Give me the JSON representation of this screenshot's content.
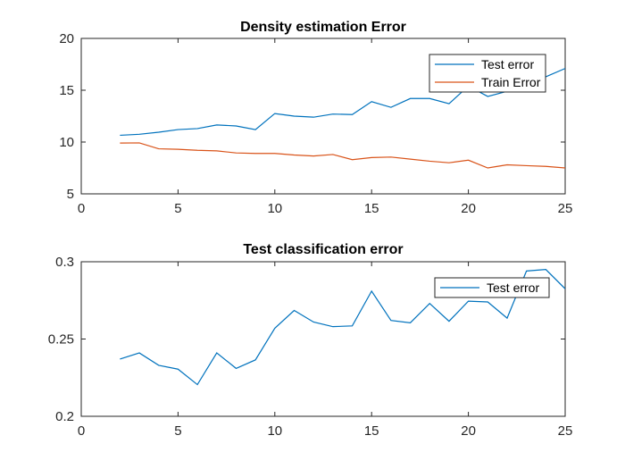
{
  "chart_data": [
    {
      "type": "line",
      "title": "Density estimation Error",
      "xlabel": "",
      "ylabel": "",
      "xlim": [
        0,
        25
      ],
      "ylim": [
        5,
        20
      ],
      "xticks": [
        "0",
        "5",
        "10",
        "15",
        "20",
        "25"
      ],
      "yticks": [
        "5",
        "10",
        "15",
        "20"
      ],
      "grid": false,
      "legend": "top-right",
      "x": [
        2,
        3,
        4,
        5,
        6,
        7,
        8,
        9,
        10,
        11,
        12,
        13,
        14,
        15,
        16,
        17,
        18,
        19,
        20,
        21,
        22,
        23,
        24,
        25
      ],
      "series": [
        {
          "name": "Test error",
          "color": "#0072BD",
          "values": [
            10.65,
            10.75,
            10.95,
            11.2,
            11.3,
            11.65,
            11.55,
            11.2,
            12.75,
            12.5,
            12.4,
            12.7,
            12.65,
            13.9,
            13.35,
            14.2,
            14.2,
            13.7,
            15.4,
            14.4,
            14.9,
            15.6,
            16.3,
            17.1
          ]
        },
        {
          "name": "Train Error",
          "color": "#D95319",
          "values": [
            9.9,
            9.92,
            9.35,
            9.3,
            9.2,
            9.15,
            8.95,
            8.9,
            8.9,
            8.75,
            8.65,
            8.8,
            8.3,
            8.5,
            8.55,
            8.35,
            8.15,
            8.0,
            8.25,
            7.5,
            7.8,
            7.72,
            7.65,
            7.5
          ]
        }
      ]
    },
    {
      "type": "line",
      "title": "Test classification error",
      "xlabel": "",
      "ylabel": "",
      "xlim": [
        0,
        25
      ],
      "ylim": [
        0.2,
        0.3
      ],
      "xticks": [
        "0",
        "5",
        "10",
        "15",
        "20",
        "25"
      ],
      "yticks": [
        "0.2",
        "0.25",
        "0.3"
      ],
      "grid": false,
      "legend": "top-right",
      "x": [
        2,
        3,
        4,
        5,
        6,
        7,
        8,
        9,
        10,
        11,
        12,
        13,
        14,
        15,
        16,
        17,
        18,
        19,
        20,
        21,
        22,
        23,
        24,
        25
      ],
      "series": [
        {
          "name": "Test error",
          "color": "#0072BD",
          "values": [
            0.237,
            0.241,
            0.233,
            0.2305,
            0.2205,
            0.241,
            0.231,
            0.2365,
            0.257,
            0.2685,
            0.261,
            0.258,
            0.2585,
            0.281,
            0.262,
            0.2605,
            0.273,
            0.2615,
            0.2745,
            0.274,
            0.2635,
            0.294,
            0.295,
            0.2825
          ]
        }
      ]
    }
  ]
}
